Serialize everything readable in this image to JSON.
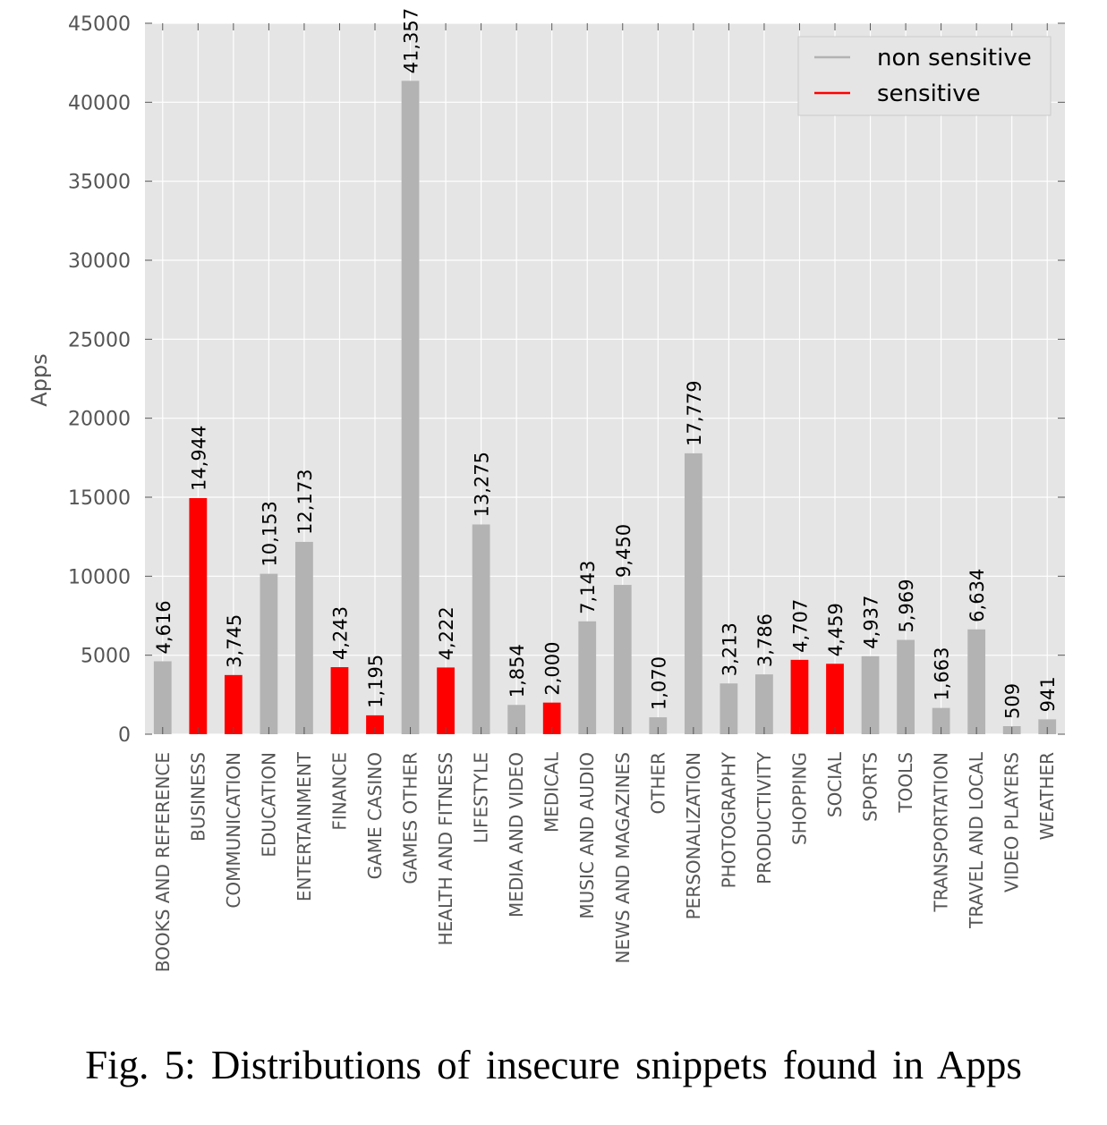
{
  "caption": "Fig. 5: Distributions of insecure snippets found in Apps",
  "chart_data": {
    "type": "bar",
    "ylabel": "Apps",
    "xlabel": "",
    "ylim": [
      0,
      45000
    ],
    "yticks": [
      0,
      5000,
      10000,
      15000,
      20000,
      25000,
      30000,
      35000,
      40000,
      45000
    ],
    "grid": true,
    "legend_position": "top-right",
    "colors": {
      "non_sensitive": "#b3b3b3",
      "sensitive": "#ff0000",
      "background": "#e5e5e5",
      "grid": "#ffffff"
    },
    "legend": [
      {
        "label": "non sensitive",
        "color": "#b3b3b3"
      },
      {
        "label": "sensitive",
        "color": "#ff0000"
      }
    ],
    "categories": [
      "BOOKS AND REFERENCE",
      "BUSINESS",
      "COMMUNICATION",
      "EDUCATION",
      "ENTERTAINMENT",
      "FINANCE",
      "GAME CASINO",
      "GAMES OTHER",
      "HEALTH AND FITNESS",
      "LIFESTYLE",
      "MEDIA AND VIDEO",
      "MEDICAL",
      "MUSIC AND AUDIO",
      "NEWS AND MAGAZINES",
      "OTHER",
      "PERSONALIZATION",
      "PHOTOGRAPHY",
      "PRODUCTIVITY",
      "SHOPPING",
      "SOCIAL",
      "SPORTS",
      "TOOLS",
      "TRANSPORTATION",
      "TRAVEL AND LOCAL",
      "VIDEO PLAYERS",
      "WEATHER"
    ],
    "values": [
      4616,
      14944,
      3745,
      10153,
      12173,
      4243,
      1195,
      41357,
      4222,
      13275,
      1854,
      2000,
      7143,
      9450,
      1070,
      17779,
      3213,
      3786,
      4707,
      4459,
      4937,
      5969,
      1663,
      6634,
      509,
      941
    ],
    "value_labels": [
      "4,616",
      "14,944",
      "3,745",
      "10,153",
      "12,173",
      "4,243",
      "1,195",
      "41,357",
      "4,222",
      "13,275",
      "1,854",
      "2,000",
      "7,143",
      "9,450",
      "1,070",
      "17,779",
      "3,213",
      "3,786",
      "4,707",
      "4,459",
      "4,937",
      "5,969",
      "1,663",
      "6,634",
      "509",
      "941"
    ],
    "sensitive": [
      false,
      true,
      true,
      false,
      false,
      true,
      true,
      false,
      true,
      false,
      false,
      true,
      false,
      false,
      false,
      false,
      false,
      false,
      true,
      true,
      false,
      false,
      false,
      false,
      false,
      false
    ]
  }
}
